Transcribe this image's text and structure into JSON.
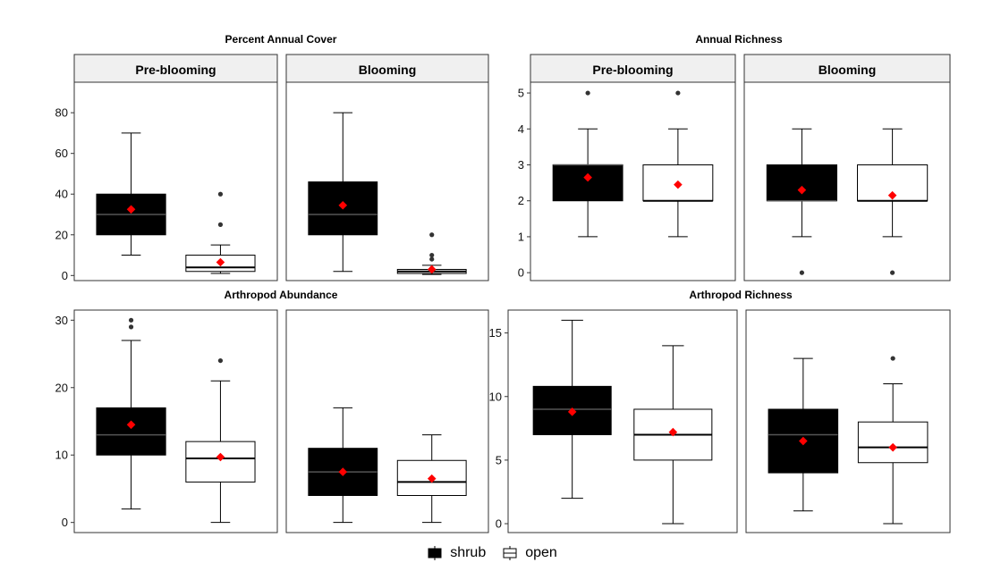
{
  "chart_data": [
    {
      "type": "box",
      "title": "Percent Annual Cover",
      "ylim": [
        -2.5,
        95
      ],
      "yticks": [
        0,
        20,
        40,
        60,
        80
      ],
      "facets": [
        {
          "strip": "Pre-blooming",
          "boxes": [
            {
              "group": "shrub",
              "min": 10,
              "q1": 20,
              "median": 30,
              "q3": 40,
              "max": 70,
              "mean": 32.5,
              "outliers": []
            },
            {
              "group": "open",
              "min": 1,
              "q1": 2,
              "median": 4,
              "q3": 10,
              "max": 15,
              "mean": 6.5,
              "outliers": [
                25,
                40
              ]
            }
          ]
        },
        {
          "strip": "Blooming",
          "boxes": [
            {
              "group": "shrub",
              "min": 2,
              "q1": 20,
              "median": 30,
              "q3": 46,
              "max": 80,
              "mean": 34.5,
              "outliers": []
            },
            {
              "group": "open",
              "min": 0.5,
              "q1": 1,
              "median": 2,
              "q3": 3,
              "max": 5,
              "mean": 3,
              "outliers": [
                8,
                10,
                20
              ]
            }
          ]
        }
      ]
    },
    {
      "type": "box",
      "title": "Annual Richness",
      "ylim": [
        -0.22,
        5.3
      ],
      "yticks": [
        0,
        1,
        2,
        3,
        4,
        5
      ],
      "facets": [
        {
          "strip": "Pre-blooming",
          "boxes": [
            {
              "group": "shrub",
              "min": 1,
              "q1": 2,
              "median": 3,
              "q3": 3,
              "max": 4,
              "mean": 2.65,
              "outliers": [
                5
              ]
            },
            {
              "group": "open",
              "min": 1,
              "q1": 2,
              "median": 2,
              "q3": 3,
              "max": 4,
              "mean": 2.45,
              "outliers": [
                5
              ]
            }
          ]
        },
        {
          "strip": "Blooming",
          "boxes": [
            {
              "group": "shrub",
              "min": 1,
              "q1": 2,
              "median": 2,
              "q3": 3,
              "max": 4,
              "mean": 2.3,
              "outliers": [
                0
              ]
            },
            {
              "group": "open",
              "min": 1,
              "q1": 2,
              "median": 2,
              "q3": 3,
              "max": 4,
              "mean": 2.15,
              "outliers": [
                0
              ]
            }
          ]
        }
      ]
    },
    {
      "type": "box",
      "title": "Arthropod Abundance",
      "ylim": [
        -1.5,
        31.5
      ],
      "yticks": [
        0,
        10,
        20,
        30
      ],
      "facets": [
        {
          "strip": "",
          "boxes": [
            {
              "group": "shrub",
              "min": 2,
              "q1": 10,
              "median": 13,
              "q3": 17,
              "max": 27,
              "mean": 14.5,
              "outliers": [
                29,
                30
              ]
            },
            {
              "group": "open",
              "min": 0,
              "q1": 6,
              "median": 9.5,
              "q3": 12,
              "max": 21,
              "mean": 9.7,
              "outliers": [
                24
              ]
            }
          ]
        },
        {
          "strip": "",
          "boxes": [
            {
              "group": "shrub",
              "min": 0,
              "q1": 4,
              "median": 7.5,
              "q3": 11,
              "max": 17,
              "mean": 7.5,
              "outliers": []
            },
            {
              "group": "open",
              "min": 0,
              "q1": 4,
              "median": 6,
              "q3": 9.2,
              "max": 13,
              "mean": 6.5,
              "outliers": []
            }
          ]
        }
      ]
    },
    {
      "type": "box",
      "title": "Arthropod Richness",
      "ylim": [
        -0.7,
        16.8
      ],
      "yticks": [
        0,
        5,
        10,
        15
      ],
      "facets": [
        {
          "strip": "",
          "boxes": [
            {
              "group": "shrub",
              "min": 2,
              "q1": 7,
              "median": 9,
              "q3": 10.8,
              "max": 16,
              "mean": 8.8,
              "outliers": []
            },
            {
              "group": "open",
              "min": 0,
              "q1": 5,
              "median": 7,
              "q3": 9,
              "max": 14,
              "mean": 7.2,
              "outliers": []
            }
          ]
        },
        {
          "strip": "",
          "boxes": [
            {
              "group": "shrub",
              "min": 1,
              "q1": 4,
              "median": 7,
              "q3": 9,
              "max": 13,
              "mean": 6.5,
              "outliers": []
            },
            {
              "group": "open",
              "min": 0,
              "q1": 4.8,
              "median": 6,
              "q3": 8,
              "max": 11,
              "mean": 6,
              "outliers": [
                13
              ]
            }
          ]
        }
      ]
    }
  ],
  "legend": {
    "placement": "bottom",
    "items": [
      {
        "label": "shrub",
        "fill": "#000000"
      },
      {
        "label": "open",
        "fill": "#ffffff"
      }
    ]
  },
  "colors": {
    "shrub_fill": "#000000",
    "open_fill": "#ffffff",
    "mean_marker": "#ff0000",
    "strip_background": "#f0f0f0",
    "outlier": "#333333"
  }
}
